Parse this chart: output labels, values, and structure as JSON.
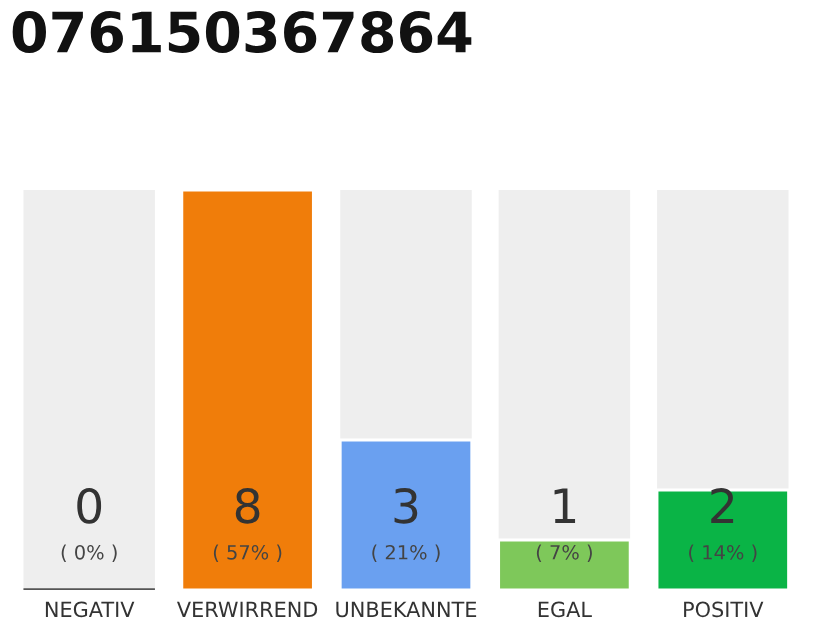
{
  "chart_data": {
    "type": "bar",
    "title": "076150367864",
    "categories": [
      "NEGATIV",
      "VERWIRREND",
      "UNBEKANNTE",
      "EGAL",
      "POSITIV"
    ],
    "values": [
      0,
      8,
      3,
      1,
      2
    ],
    "colors": [
      "#555555",
      "#f07d0a",
      "#6aa0f0",
      "#7ec85a",
      "#0ab446"
    ],
    "data_labels": true,
    "annotations": [
      "( 0% )",
      "( 57% )",
      "( 21% )",
      "( 7% )",
      "( 14% )"
    ],
    "grid": false,
    "legend": false
  }
}
